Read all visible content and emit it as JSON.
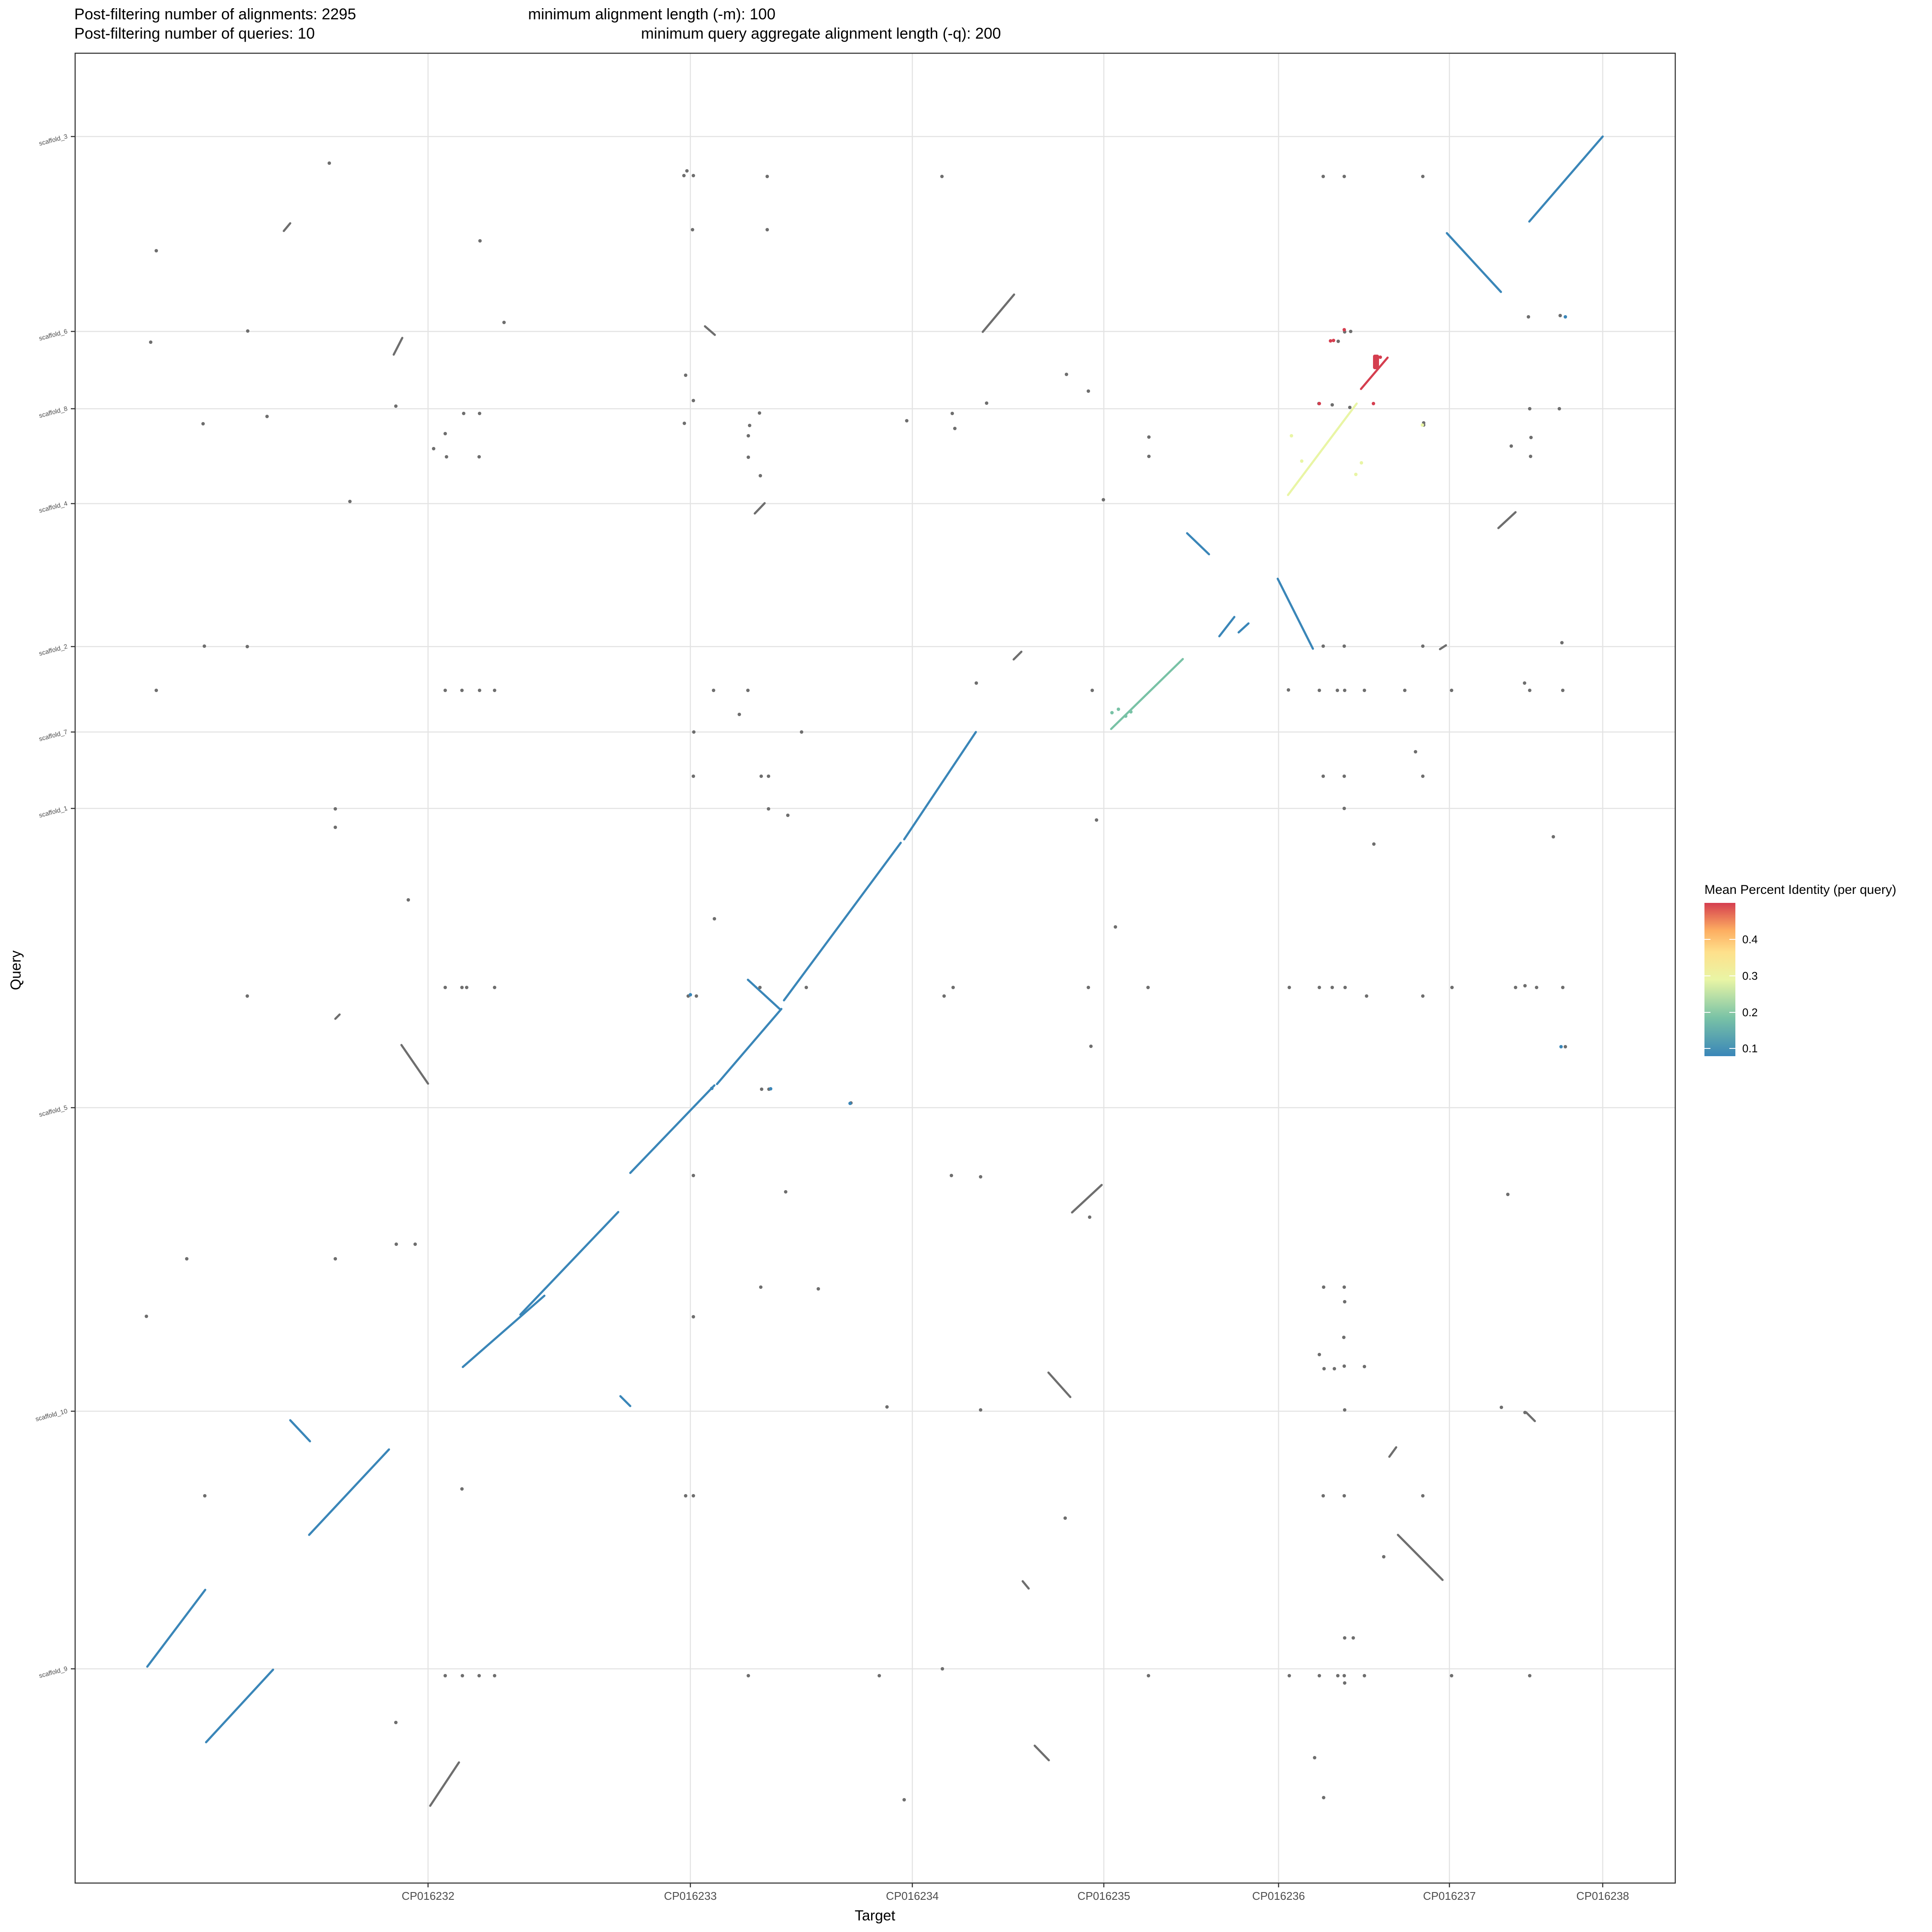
{
  "header": {
    "alignments": "Post-filtering number of alignments: 2295",
    "queries": "Post-filtering number of queries: 10",
    "min_len": "minimum alignment length (-m): 100",
    "min_agg": "minimum query aggregate alignment length (-q): 200"
  },
  "colors": {
    "grid": "#e3e3e3",
    "panel_border": "#333333",
    "off_diagonal": "#6e6e6e",
    "scale": [
      "#3a86b8",
      "#79c2a6",
      "#e9f5a5",
      "#fee08b",
      "#fdae61",
      "#d53e4f"
    ]
  },
  "chart_data": {
    "type": "scatter",
    "xlabel": "Target",
    "ylabel": "Query",
    "x_ticks": [
      "CP016232",
      "CP016233",
      "CP016234",
      "CP016235",
      "CP016236",
      "CP016237",
      "CP016238"
    ],
    "y_ticks": [
      "scaffold_9",
      "scaffold_10",
      "scaffold_5",
      "scaffold_1",
      "scaffold_7",
      "scaffold_2",
      "scaffold_4",
      "scaffold_8",
      "scaffold_6",
      "scaffold_3"
    ],
    "legend": {
      "title": "Mean Percent Identity (per query)",
      "ticks": [
        "0.1",
        "0.2",
        "0.3",
        "0.4"
      ]
    }
  }
}
